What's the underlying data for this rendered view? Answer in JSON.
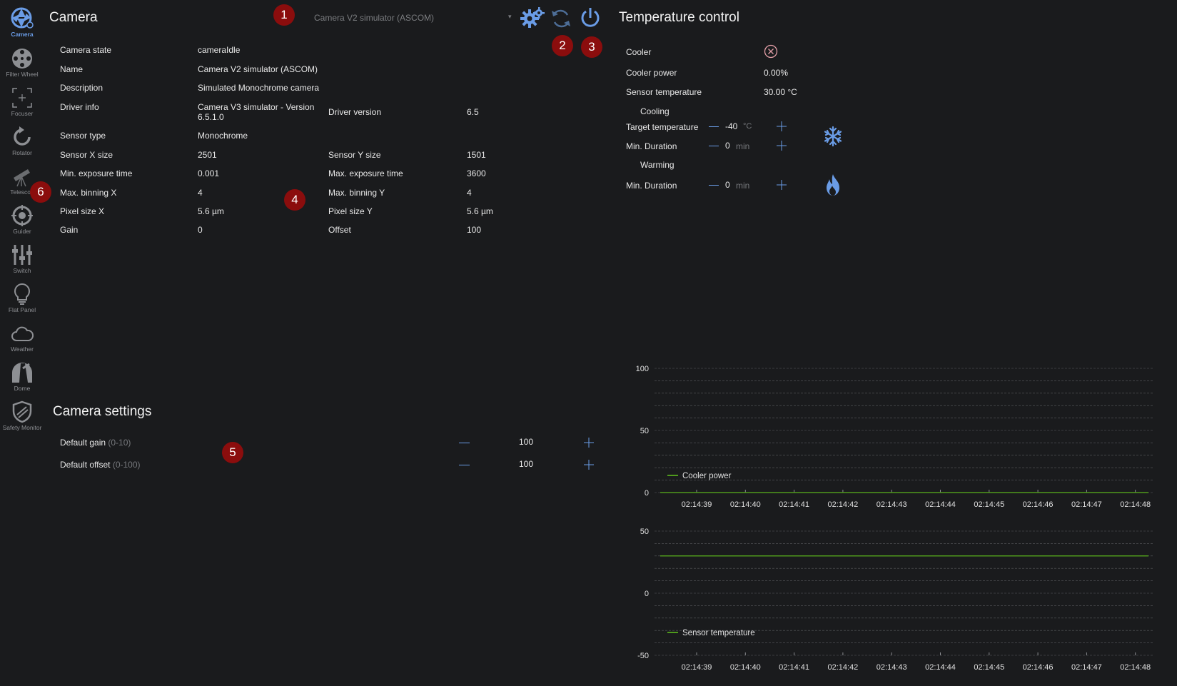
{
  "sidebar": {
    "items": [
      {
        "label": "Camera",
        "icon": "camera-aperture-icon",
        "active": true
      },
      {
        "label": "Filter Wheel",
        "icon": "filter-wheel-icon"
      },
      {
        "label": "Focuser",
        "icon": "focuser-icon"
      },
      {
        "label": "Rotator",
        "icon": "rotator-icon"
      },
      {
        "label": "Telescope",
        "icon": "telescope-icon"
      },
      {
        "label": "Guider",
        "icon": "guider-icon"
      },
      {
        "label": "Switch",
        "icon": "switch-sliders-icon"
      },
      {
        "label": "Flat Panel",
        "icon": "flat-panel-bulb-icon"
      },
      {
        "label": "Weather",
        "icon": "weather-cloud-icon"
      },
      {
        "label": "Dome",
        "icon": "dome-icon"
      },
      {
        "label": "Safety Monitor",
        "icon": "safety-shield-icon"
      }
    ],
    "telescope_label_visible": "Telescop"
  },
  "camera": {
    "title": "Camera",
    "device_select": "Camera V2 simulator (ASCOM)",
    "info": {
      "camera_state_label": "Camera state",
      "camera_state": "cameraIdle",
      "name_label": "Name",
      "name": "Camera V2 simulator (ASCOM)",
      "description_label": "Description",
      "description": "Simulated Monochrome camera",
      "driver_info_label": "Driver info",
      "driver_info_1": "Camera V3 simulator - Version",
      "driver_info_2": "6.5.1.0",
      "driver_version_label": "Driver version",
      "driver_version": "6.5",
      "sensor_type_label": "Sensor type",
      "sensor_type": "Monochrome",
      "sensor_x_label": "Sensor X size",
      "sensor_x": "2501",
      "sensor_y_label": "Sensor Y size",
      "sensor_y": "1501",
      "min_exp_label": "Min. exposure time",
      "min_exp": "0.001",
      "max_exp_label": "Max. exposure time",
      "max_exp": "3600",
      "max_bin_x_label": "Max. binning X",
      "max_bin_x": "4",
      "max_bin_y_label": "Max. binning Y",
      "max_bin_y": "4",
      "pixel_x_label": "Pixel size X",
      "pixel_x": "5.6 µm",
      "pixel_y_label": "Pixel size Y",
      "pixel_y": "5.6 µm",
      "gain_label": "Gain",
      "gain": "0",
      "offset_label": "Offset",
      "offset": "100"
    }
  },
  "camera_settings": {
    "title": "Camera settings",
    "default_gain_label": "Default gain",
    "default_gain_range": "(0-10)",
    "default_gain": "100",
    "default_offset_label": "Default offset",
    "default_offset_range": "(0-100)",
    "default_offset": "100"
  },
  "badges": [
    "1",
    "2",
    "3",
    "4",
    "5",
    "6"
  ],
  "temperature": {
    "title": "Temperature control",
    "cooler_label": "Cooler",
    "cooler_power_label": "Cooler power",
    "cooler_power": "0.00%",
    "sensor_temp_label": "Sensor temperature",
    "sensor_temp": "30.00 °C",
    "cooling_label": "Cooling",
    "target_temp_label": "Target temperature",
    "target_temp": "-40",
    "target_temp_unit": "°C",
    "cool_min_dur_label": "Min. Duration",
    "cool_min_dur": "0",
    "cool_min_dur_unit": "min",
    "warming_label": "Warming",
    "warm_min_dur_label": "Min. Duration",
    "warm_min_dur": "0",
    "warm_min_dur_unit": "min"
  },
  "colors": {
    "accent": "#6a9ce6",
    "badge": "#8b0d0d",
    "series": "#4f9a1c",
    "bg": "#1a1b1d"
  },
  "chart_data": [
    {
      "type": "line",
      "x": [
        "02:14:39",
        "02:14:40",
        "02:14:41",
        "02:14:42",
        "02:14:43",
        "02:14:44",
        "02:14:45",
        "02:14:46",
        "02:14:47",
        "02:14:48"
      ],
      "series": [
        {
          "name": "Cooler power",
          "values": [
            0,
            0,
            0,
            0,
            0,
            0,
            0,
            0,
            0,
            0
          ]
        }
      ],
      "ylim": [
        0,
        100
      ],
      "yticks": [
        "100",
        "50",
        "0"
      ],
      "legend": "bottom-left",
      "grid": true
    },
    {
      "type": "line",
      "x": [
        "02:14:39",
        "02:14:40",
        "02:14:41",
        "02:14:42",
        "02:14:43",
        "02:14:44",
        "02:14:45",
        "02:14:46",
        "02:14:47",
        "02:14:48"
      ],
      "series": [
        {
          "name": "Sensor temperature",
          "values": [
            30,
            30,
            30,
            30,
            30,
            30,
            30,
            30,
            30,
            30
          ]
        }
      ],
      "ylim": [
        -50,
        50
      ],
      "yticks": [
        "50",
        "0",
        "-50"
      ],
      "legend": "bottom-left",
      "grid": true
    }
  ]
}
